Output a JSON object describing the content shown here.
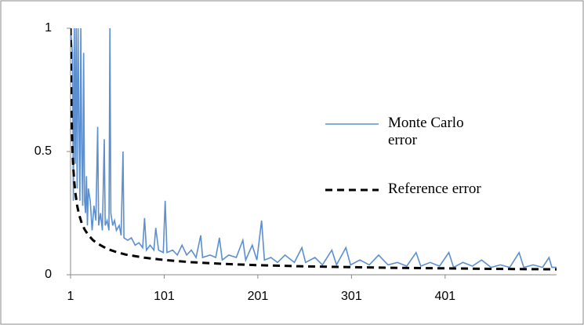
{
  "chart_data": {
    "type": "line",
    "xlim": [
      1,
      520
    ],
    "xticks": [
      1,
      101,
      201,
      301,
      401
    ],
    "ylim": [
      0,
      1
    ],
    "yticks": [
      0,
      0.5,
      1
    ],
    "legend": "right",
    "series": [
      {
        "name": "Monte Carlo error",
        "color": "#5b8fd0",
        "dash": "solid",
        "x": [
          1,
          3,
          4,
          5,
          6,
          7,
          8,
          9,
          10,
          11,
          12,
          13,
          14,
          15,
          16,
          17,
          18,
          19,
          20,
          22,
          24,
          26,
          28,
          30,
          31,
          33,
          35,
          37,
          38,
          40,
          42,
          43,
          44,
          46,
          48,
          50,
          53,
          55,
          57,
          58,
          62,
          66,
          70,
          74,
          78,
          80,
          82,
          86,
          90,
          92,
          95,
          100,
          102,
          104,
          110,
          115,
          120,
          125,
          130,
          135,
          140,
          142,
          150,
          156,
          160,
          163,
          170,
          178,
          185,
          188,
          195,
          200,
          205,
          208,
          215,
          222,
          230,
          240,
          248,
          252,
          262,
          270,
          280,
          285,
          295,
          300,
          310,
          320,
          330,
          340,
          350,
          360,
          370,
          375,
          385,
          395,
          405,
          410,
          420,
          430,
          440,
          450,
          460,
          470,
          480,
          485,
          495,
          505,
          512,
          515,
          520
        ],
        "values": [
          1,
          0.9,
          0.3,
          1,
          0.45,
          1,
          0.35,
          1,
          0.6,
          0.3,
          1,
          0.5,
          0.28,
          0.9,
          0.3,
          0.25,
          0.4,
          0.2,
          0.35,
          0.3,
          0.18,
          0.28,
          0.22,
          0.6,
          0.2,
          0.25,
          0.18,
          0.55,
          0.2,
          0.22,
          0.18,
          1,
          0.25,
          0.2,
          0.22,
          0.18,
          0.2,
          0.16,
          0.5,
          0.15,
          0.14,
          0.15,
          0.12,
          0.13,
          0.11,
          0.23,
          0.1,
          0.12,
          0.1,
          0.19,
          0.1,
          0.09,
          0.3,
          0.09,
          0.1,
          0.08,
          0.12,
          0.08,
          0.1,
          0.07,
          0.16,
          0.07,
          0.08,
          0.07,
          0.15,
          0.06,
          0.08,
          0.07,
          0.14,
          0.06,
          0.12,
          0.06,
          0.22,
          0.06,
          0.07,
          0.05,
          0.08,
          0.05,
          0.11,
          0.05,
          0.07,
          0.04,
          0.1,
          0.04,
          0.11,
          0.04,
          0.06,
          0.04,
          0.08,
          0.04,
          0.05,
          0.035,
          0.09,
          0.035,
          0.05,
          0.035,
          0.09,
          0.03,
          0.05,
          0.035,
          0.06,
          0.03,
          0.04,
          0.03,
          0.09,
          0.03,
          0.04,
          0.03,
          0.07,
          0.03,
          0.03
        ]
      },
      {
        "name": "Reference error",
        "color": "#000000",
        "dash": "dashed",
        "x": [
          1,
          2,
          3,
          4,
          5,
          6,
          8,
          10,
          13,
          16,
          20,
          25,
          30,
          40,
          50,
          60,
          80,
          101,
          130,
          160,
          200,
          250,
          300,
          350,
          400,
          450,
          520
        ],
        "values": [
          1,
          0.655,
          0.512,
          0.429,
          0.375,
          0.335,
          0.281,
          0.245,
          0.209,
          0.184,
          0.161,
          0.14,
          0.126,
          0.105,
          0.092,
          0.082,
          0.069,
          0.06,
          0.051,
          0.045,
          0.039,
          0.034,
          0.031,
          0.028,
          0.026,
          0.024,
          0.022
        ]
      }
    ]
  }
}
